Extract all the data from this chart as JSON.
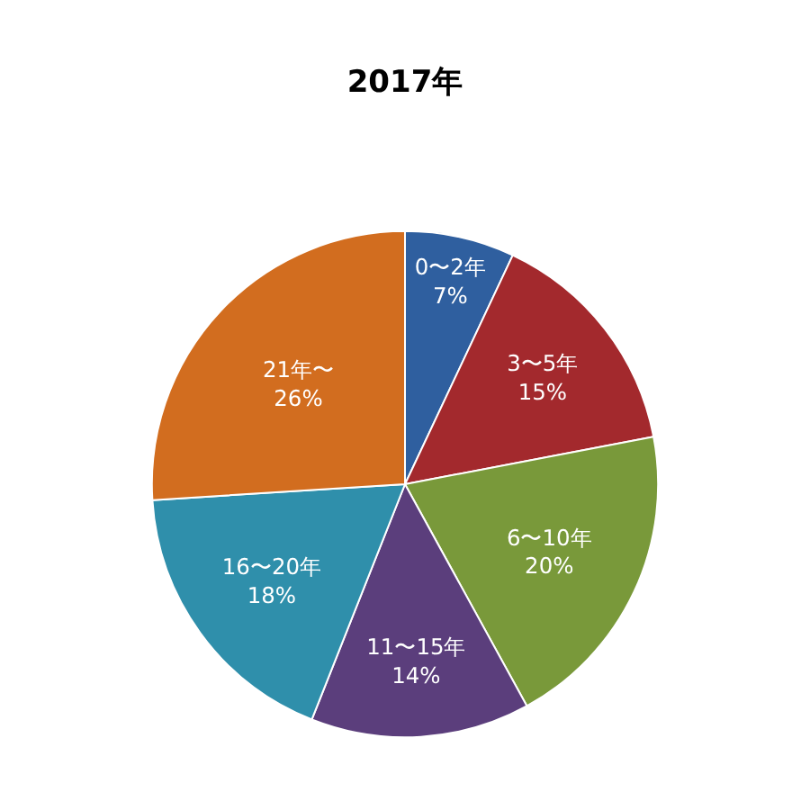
{
  "chart_data": {
    "type": "pie",
    "title": "2017年",
    "categories": [
      "0〜2年",
      "3〜5年",
      "6〜10年",
      "11〜15年",
      "16〜20年",
      "21年〜"
    ],
    "values": [
      7,
      15,
      20,
      14,
      18,
      26
    ],
    "value_labels": [
      "7%",
      "15%",
      "20%",
      "14%",
      "18%",
      "26%"
    ],
    "colors": [
      "#2f5f9f",
      "#a3292d",
      "#79993a",
      "#5b3e7c",
      "#2f8fab",
      "#d26d1f"
    ],
    "legend": false
  }
}
